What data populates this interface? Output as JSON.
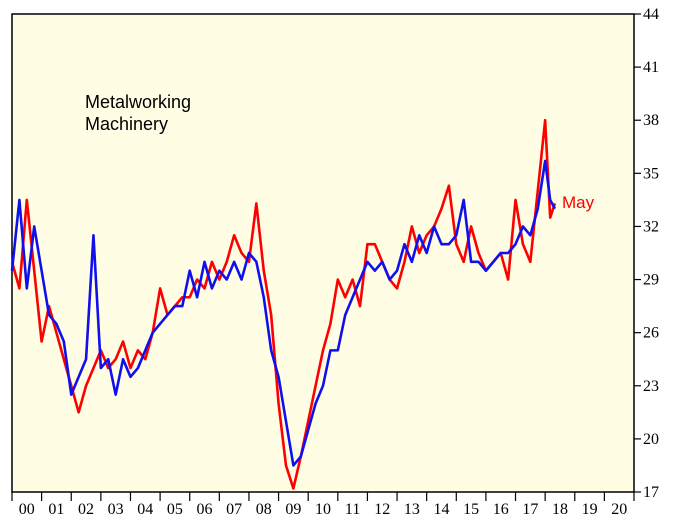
{
  "chart_data": {
    "type": "line",
    "title_lines": [
      "Metalworking",
      "Machinery"
    ],
    "end_label": "May",
    "x": [
      2000.0,
      2000.25,
      2000.5,
      2000.75,
      2001.0,
      2001.25,
      2001.5,
      2001.75,
      2002.0,
      2002.25,
      2002.5,
      2002.75,
      2003.0,
      2003.25,
      2003.5,
      2003.75,
      2004.0,
      2004.25,
      2004.5,
      2004.75,
      2005.0,
      2005.25,
      2005.5,
      2005.75,
      2006.0,
      2006.25,
      2006.5,
      2006.75,
      2007.0,
      2007.25,
      2007.5,
      2007.75,
      2008.0,
      2008.25,
      2008.5,
      2008.75,
      2009.0,
      2009.25,
      2009.5,
      2009.75,
      2010.0,
      2010.25,
      2010.5,
      2010.75,
      2011.0,
      2011.25,
      2011.5,
      2011.75,
      2012.0,
      2012.25,
      2012.5,
      2012.75,
      2013.0,
      2013.25,
      2013.5,
      2013.75,
      2014.0,
      2014.25,
      2014.5,
      2014.75,
      2015.0,
      2015.25,
      2015.5,
      2015.75,
      2016.0,
      2016.25,
      2016.5,
      2016.75,
      2017.0,
      2017.25,
      2017.5,
      2017.75,
      2018.0,
      2018.17,
      2018.33
    ],
    "series": [
      {
        "color": "#ff0000",
        "values": [
          30,
          28.5,
          33.5,
          29.5,
          25.5,
          27.5,
          26,
          24.5,
          23,
          21.5,
          23,
          24,
          25,
          24,
          24.5,
          25.5,
          24,
          25,
          24.5,
          26,
          28.5,
          27,
          27.5,
          28,
          28,
          29,
          28.5,
          30,
          29,
          30,
          31.5,
          30.5,
          30,
          33.3,
          29.5,
          27,
          22,
          18.5,
          17.2,
          19,
          21,
          23,
          25,
          26.5,
          29,
          28,
          29,
          27.5,
          31,
          31,
          30,
          29,
          28.5,
          30,
          32,
          30.5,
          31.5,
          32,
          33,
          34.3,
          31,
          30,
          32,
          30.5,
          29.5,
          30,
          30.5,
          29,
          33.5,
          31,
          30,
          34,
          38,
          32.5,
          33.3
        ]
      },
      {
        "color": "#1010ee",
        "values": [
          29.5,
          33.5,
          28.5,
          32,
          29.5,
          27,
          26.5,
          25.5,
          22.5,
          23.5,
          24.5,
          31.5,
          24,
          24.5,
          22.5,
          24.5,
          23.5,
          24,
          25,
          26,
          26.5,
          27,
          27.5,
          27.5,
          29.5,
          28,
          30,
          28.5,
          29.5,
          29,
          30,
          29,
          30.5,
          30,
          28,
          25,
          23.5,
          21,
          18.5,
          19,
          20.5,
          22,
          23,
          25,
          25,
          27,
          28,
          29,
          30,
          29.5,
          30,
          29,
          29.5,
          31,
          30,
          31.5,
          30.5,
          32,
          31,
          31,
          31.5,
          33.5,
          30,
          30,
          29.5,
          30,
          30.5,
          30.5,
          31,
          32,
          31.5,
          33,
          35.7,
          33.5,
          33
        ]
      }
    ],
    "xlim": [
      2000,
      2021
    ],
    "xtick_marks": [
      2000,
      2001,
      2002,
      2003,
      2004,
      2005,
      2006,
      2007,
      2008,
      2009,
      2010,
      2011,
      2012,
      2013,
      2014,
      2015,
      2016,
      2017,
      2018,
      2019,
      2020,
      2021
    ],
    "xticks": [
      {
        "value": 2000.5,
        "label": "00"
      },
      {
        "value": 2001.5,
        "label": "01"
      },
      {
        "value": 2002.5,
        "label": "02"
      },
      {
        "value": 2003.5,
        "label": "03"
      },
      {
        "value": 2004.5,
        "label": "04"
      },
      {
        "value": 2005.5,
        "label": "05"
      },
      {
        "value": 2006.5,
        "label": "06"
      },
      {
        "value": 2007.5,
        "label": "07"
      },
      {
        "value": 2008.5,
        "label": "08"
      },
      {
        "value": 2009.5,
        "label": "09"
      },
      {
        "value": 2010.5,
        "label": "10"
      },
      {
        "value": 2011.5,
        "label": "11"
      },
      {
        "value": 2012.5,
        "label": "12"
      },
      {
        "value": 2013.5,
        "label": "13"
      },
      {
        "value": 2014.5,
        "label": "14"
      },
      {
        "value": 2015.5,
        "label": "15"
      },
      {
        "value": 2016.5,
        "label": "16"
      },
      {
        "value": 2017.5,
        "label": "17"
      },
      {
        "value": 2018.5,
        "label": "18"
      },
      {
        "value": 2019.5,
        "label": "19"
      },
      {
        "value": 2020.5,
        "label": "20"
      }
    ],
    "ylim": [
      17,
      44
    ],
    "yticks": [
      17,
      20,
      23,
      26,
      29,
      32,
      35,
      38,
      41,
      44
    ],
    "background": "#fffde4"
  }
}
